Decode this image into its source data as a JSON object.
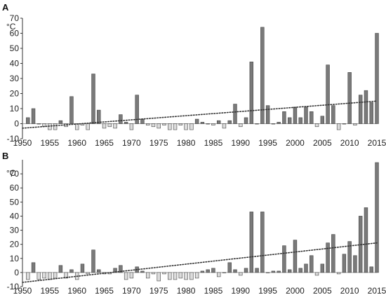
{
  "chart_data": [
    {
      "type": "bar",
      "panel": "A",
      "ylabel": "°C",
      "ylim": [
        -10,
        70
      ],
      "yticks": [
        -10,
        0,
        10,
        20,
        30,
        40,
        50,
        60,
        70
      ],
      "xlim": [
        1950,
        2015
      ],
      "xticks": [
        1950,
        1955,
        1960,
        1965,
        1970,
        1975,
        1980,
        1985,
        1990,
        1995,
        2000,
        2005,
        2010,
        2015
      ],
      "trend": {
        "x": [
          1950,
          2015
        ],
        "y": [
          -3,
          15
        ]
      },
      "colors": {
        "positive": "#7a7a7a",
        "negative": "#dcdcdc",
        "bar_stroke": "#444444",
        "trend": "#333333",
        "axis": "#333333"
      },
      "x": [
        1951,
        1952,
        1953,
        1954,
        1955,
        1956,
        1957,
        1958,
        1959,
        1960,
        1961,
        1962,
        1963,
        1964,
        1965,
        1966,
        1967,
        1968,
        1969,
        1970,
        1971,
        1972,
        1973,
        1974,
        1975,
        1976,
        1977,
        1978,
        1979,
        1980,
        1981,
        1982,
        1983,
        1984,
        1985,
        1986,
        1987,
        1988,
        1989,
        1990,
        1991,
        1992,
        1993,
        1994,
        1995,
        1996,
        1997,
        1998,
        1999,
        2000,
        2001,
        2002,
        2003,
        2004,
        2005,
        2006,
        2007,
        2008,
        2009,
        2010,
        2011,
        2012,
        2013,
        2014,
        2015
      ],
      "values": [
        4,
        10,
        0,
        -2,
        -4,
        -4,
        2,
        -2,
        18,
        -4,
        -1,
        -4,
        33,
        9,
        -3,
        -2,
        -3,
        6,
        1,
        -4,
        19,
        3,
        -1,
        -2,
        -3,
        -1,
        -4,
        -4,
        -1,
        -4,
        -4,
        3,
        1,
        0,
        -1,
        2,
        -3,
        2,
        13,
        -2,
        4,
        41,
        0,
        64,
        12,
        0,
        1,
        8,
        4,
        11,
        4,
        11,
        8,
        -2,
        5,
        39,
        12,
        -4,
        0,
        34,
        -1,
        19,
        22,
        14,
        60
      ]
    },
    {
      "type": "bar",
      "panel": "B",
      "ylabel": "°C",
      "ylim": [
        -10,
        80
      ],
      "yticks": [
        -10,
        0,
        10,
        20,
        30,
        40,
        50,
        60,
        70
      ],
      "xlim": [
        1950,
        2015
      ],
      "xticks": [
        1950,
        1955,
        1960,
        1965,
        1970,
        1975,
        1980,
        1985,
        1990,
        1995,
        2000,
        2005,
        2010,
        2015
      ],
      "trend": {
        "x": [
          1950,
          2015
        ],
        "y": [
          -7,
          21
        ]
      },
      "colors": {
        "positive": "#7a7a7a",
        "negative": "#dcdcdc",
        "bar_stroke": "#444444",
        "trend": "#333333",
        "axis": "#333333"
      },
      "x": [
        1951,
        1952,
        1953,
        1954,
        1955,
        1956,
        1957,
        1958,
        1959,
        1960,
        1961,
        1962,
        1963,
        1964,
        1965,
        1966,
        1967,
        1968,
        1969,
        1970,
        1971,
        1972,
        1973,
        1974,
        1975,
        1976,
        1977,
        1978,
        1979,
        1980,
        1981,
        1982,
        1983,
        1984,
        1985,
        1986,
        1987,
        1988,
        1989,
        1990,
        1991,
        1992,
        1993,
        1994,
        1995,
        1996,
        1997,
        1998,
        1999,
        2000,
        2001,
        2002,
        2003,
        2004,
        2005,
        2006,
        2007,
        2008,
        2009,
        2010,
        2011,
        2012,
        2013,
        2014,
        2015
      ],
      "values": [
        -5,
        7,
        -5,
        -4,
        -5,
        -4,
        5,
        -4,
        2,
        -5,
        6,
        -1,
        16,
        2,
        -1,
        -1,
        3,
        5,
        -5,
        -4,
        4,
        1,
        -4,
        -1,
        -6,
        -1,
        -5,
        -5,
        -4,
        -5,
        -5,
        -4,
        1,
        2,
        3,
        -3,
        0,
        7,
        2,
        -2,
        3,
        43,
        3,
        43,
        0,
        1,
        1,
        19,
        2,
        23,
        3,
        6,
        12,
        -2,
        6,
        21,
        27,
        -1,
        13,
        22,
        12,
        40,
        46,
        4,
        78
      ]
    }
  ]
}
